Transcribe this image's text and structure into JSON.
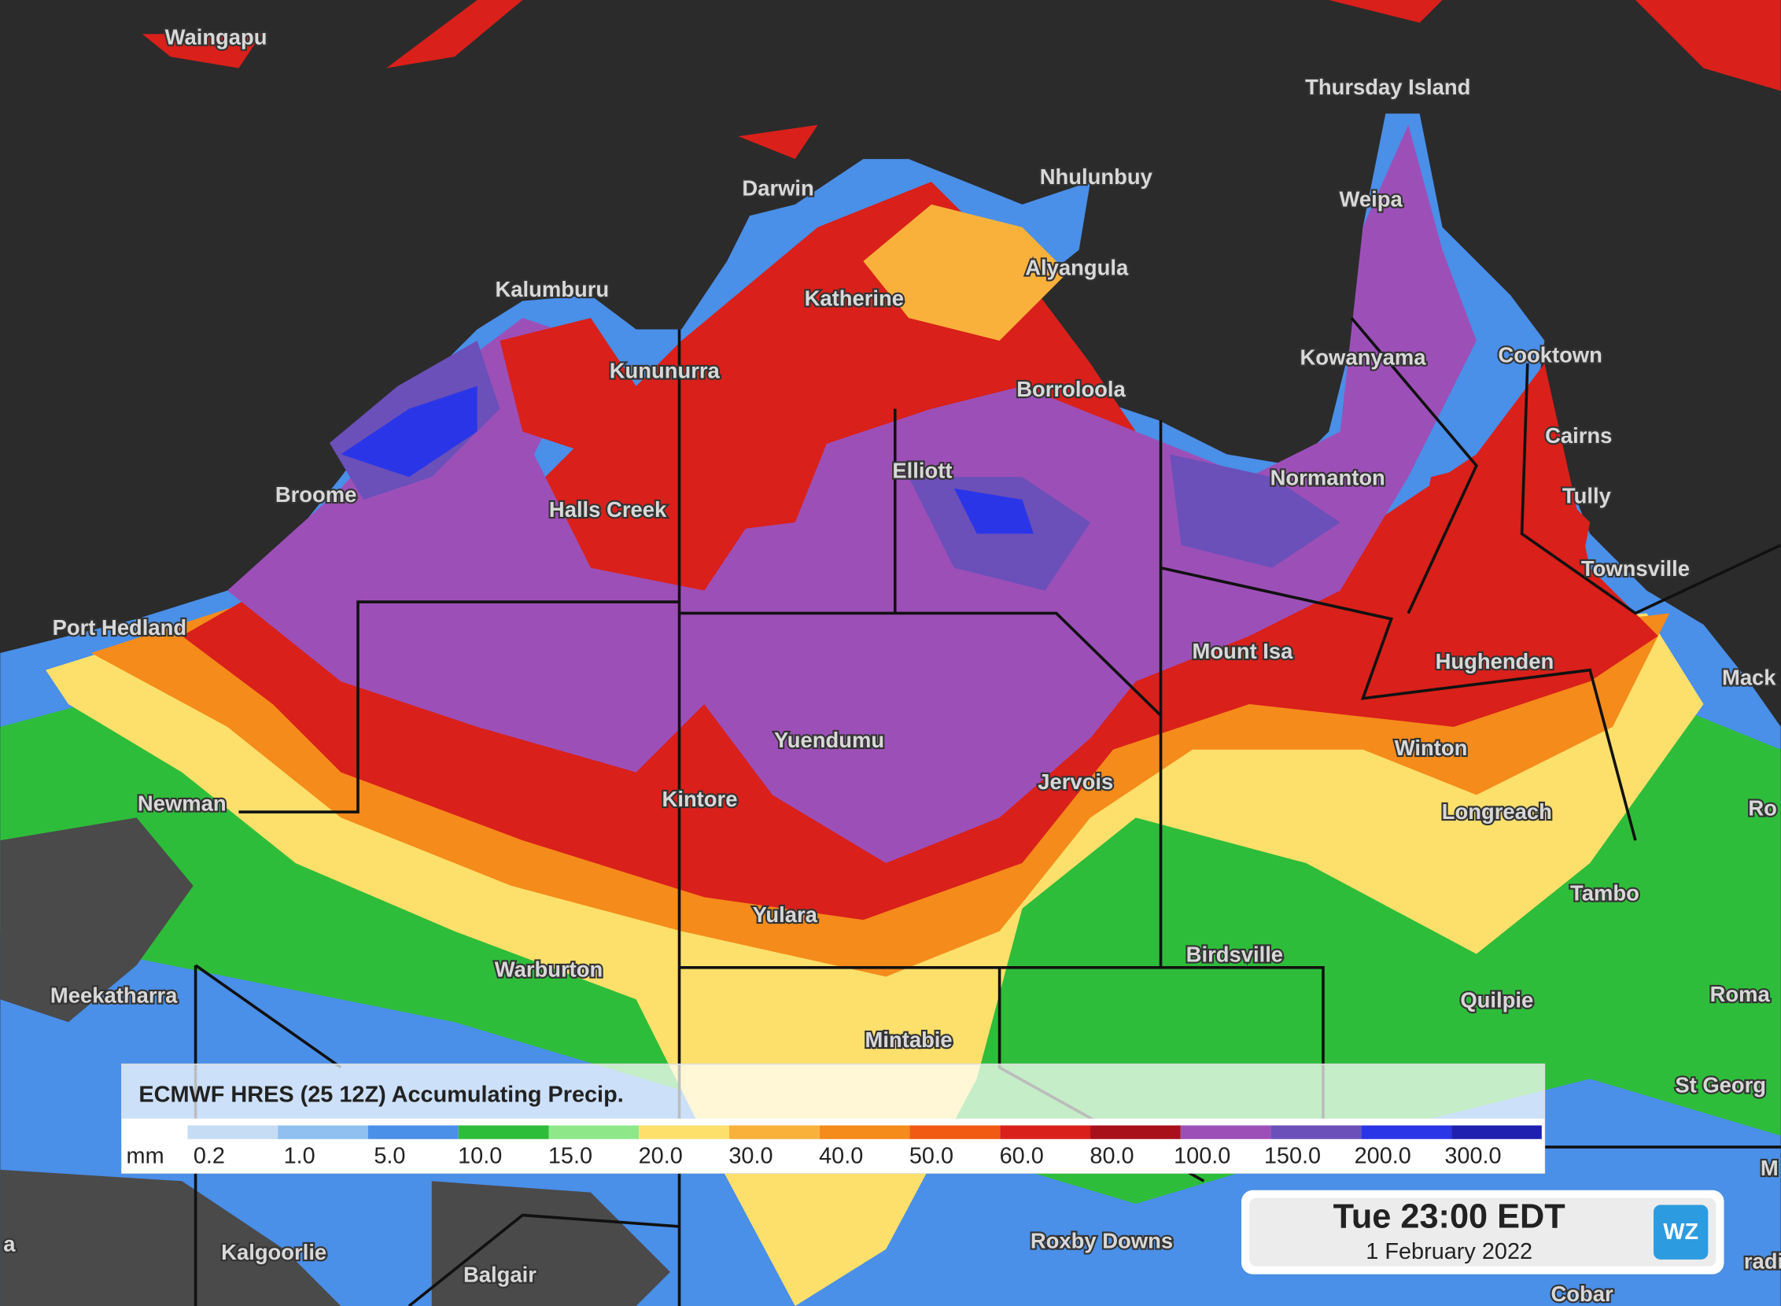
{
  "map": {
    "places": [
      "Waingapu",
      "Thursday Island",
      "Darwin",
      "Nhulunbuy",
      "Weipa",
      "Alyangula",
      "Kalumburu",
      "Katherine",
      "Kununurra",
      "Kowanyama",
      "Cooktown",
      "Borroloola",
      "Cairns",
      "Broome",
      "Elliott",
      "Normanton",
      "Tully",
      "Halls Creek",
      "Townsville",
      "Port Hedland",
      "Mount Isa",
      "Hughenden",
      "Mack",
      "Yuendumu",
      "Winton",
      "Jervois",
      "Newman",
      "Kintore",
      "Longreach",
      "Ro",
      "Tambo",
      "Yulara",
      "Warburton",
      "Birdsville",
      "Meekatharra",
      "Quilpie",
      "Roma",
      "Mintabie",
      "St Georg",
      "M",
      "Kalgoorlie",
      "Roxby Downs",
      "Balgair",
      "Cobar",
      "a",
      "radi"
    ]
  },
  "legend": {
    "title": "ECMWF HRES (25 12Z) Accumulating Precip.",
    "unit": "mm",
    "bins": [
      {
        "label": "0.2",
        "color": "#c6dcf5"
      },
      {
        "label": "1.0",
        "color": "#8fc0f0"
      },
      {
        "label": "5.0",
        "color": "#4a8fe8"
      },
      {
        "label": "10.0",
        "color": "#2ebd3a"
      },
      {
        "label": "15.0",
        "color": "#8ee88a"
      },
      {
        "label": "20.0",
        "color": "#fde06b"
      },
      {
        "label": "30.0",
        "color": "#f9b13c"
      },
      {
        "label": "40.0",
        "color": "#f58b1a"
      },
      {
        "label": "50.0",
        "color": "#f05a12"
      },
      {
        "label": "60.0",
        "color": "#d9201a"
      },
      {
        "label": "80.0",
        "color": "#a8101a"
      },
      {
        "label": "100.0",
        "color": "#9d4fb8"
      },
      {
        "label": "150.0",
        "color": "#6a50b8"
      },
      {
        "label": "200.0",
        "color": "#2a35e8"
      },
      {
        "label": "300.0",
        "color": "#2020b0"
      }
    ]
  },
  "time_box": {
    "time": "Tue 23:00 EDT",
    "date": "1 February 2022",
    "logo": "WZ"
  }
}
